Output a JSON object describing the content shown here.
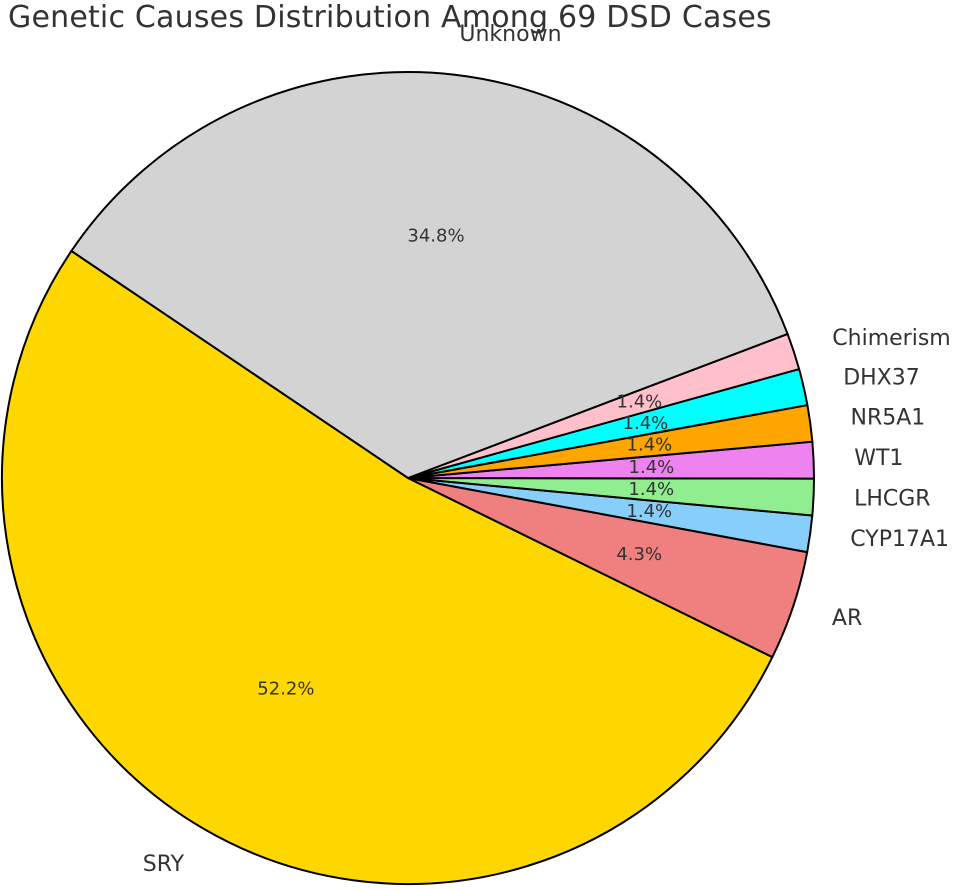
{
  "chart_data": {
    "type": "pie",
    "title": "Genetic Causes Distribution Among 69 DSD Cases",
    "total_cases": 69,
    "start_angle_deg": 146,
    "direction": "counterclockwise",
    "slices": [
      {
        "id": "sry",
        "label": "SRY",
        "count": 36,
        "percent_label": "52.2%",
        "color": "#FFD700"
      },
      {
        "id": "ar",
        "label": "AR",
        "count": 3,
        "percent_label": "4.3%",
        "color": "#F08080"
      },
      {
        "id": "cyp17a1",
        "label": "CYP17A1",
        "count": 1,
        "percent_label": "1.4%",
        "color": "#87CEFA"
      },
      {
        "id": "lhcgr",
        "label": "LHCGR",
        "count": 1,
        "percent_label": "1.4%",
        "color": "#90EE90"
      },
      {
        "id": "wt1",
        "label": "WT1",
        "count": 1,
        "percent_label": "1.4%",
        "color": "#EE82EE"
      },
      {
        "id": "nr5a1",
        "label": "NR5A1",
        "count": 1,
        "percent_label": "1.4%",
        "color": "#FFA500"
      },
      {
        "id": "dhx37",
        "label": "DHX37",
        "count": 1,
        "percent_label": "1.4%",
        "color": "#00FFFF"
      },
      {
        "id": "chimerism",
        "label": "Chimerism",
        "count": 1,
        "percent_label": "1.4%",
        "color": "#FFC0CB"
      },
      {
        "id": "unknown",
        "label": "Unknown",
        "count": 24,
        "percent_label": "34.8%",
        "color": "#D3D3D3"
      }
    ]
  }
}
